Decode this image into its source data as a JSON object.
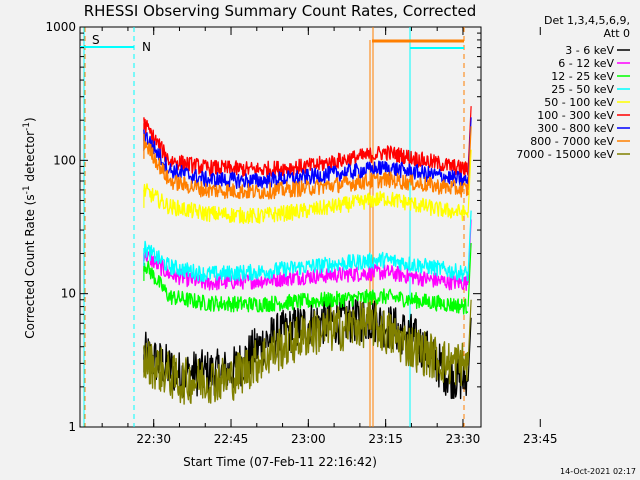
{
  "chart_data": {
    "type": "line",
    "title": "RHESSI Observing Summary Count Rates, Corrected",
    "xlabel": "Start Time (07-Feb-11 22:16:42)",
    "ylabel_main": "Corrected Count Rate (s",
    "ylabel_sup1": "-1",
    "ylabel_mid": " detector",
    "ylabel_sup2": "-1",
    "ylabel_end": ")",
    "yscale": "log",
    "ylim": [
      1,
      1000
    ],
    "y_ticks": [
      {
        "value": 1,
        "label": "1"
      },
      {
        "value": 10,
        "label": "10"
      },
      {
        "value": 100,
        "label": "100"
      },
      {
        "value": 1000,
        "label": "1000"
      }
    ],
    "xlim_minutes": [
      -14.3,
      63.5
    ],
    "x_ticks": [
      {
        "minute": 0,
        "label": "22:30"
      },
      {
        "minute": 15,
        "label": "22:45"
      },
      {
        "minute": 30,
        "label": "23:00"
      },
      {
        "minute": 45,
        "label": "23:15"
      },
      {
        "minute": 60,
        "label": "23:30"
      },
      {
        "minute": 75,
        "label": "23:45"
      }
    ],
    "legend_header": [
      "Det 1,3,4,5,6,9,",
      "Att 0"
    ],
    "legend_position": "right",
    "series": [
      {
        "name": "3 - 6 keV",
        "color": "#000000",
        "segments": [
          [
            -1.9,
            3.5
          ],
          [
            5,
            2.5
          ],
          [
            15,
            2.6
          ],
          [
            22,
            4.5
          ],
          [
            30,
            6
          ],
          [
            42,
            6.5
          ],
          [
            50,
            4.8
          ],
          [
            57,
            2.5
          ],
          [
            61,
            2.2
          ]
        ]
      },
      {
        "name": "6 - 12 keV",
        "color": "#ff00ff",
        "segments": [
          [
            -1.9,
            20
          ],
          [
            3,
            14
          ],
          [
            10,
            12
          ],
          [
            20,
            12.5
          ],
          [
            30,
            13.5
          ],
          [
            45,
            14.5
          ],
          [
            55,
            12.5
          ],
          [
            61,
            12
          ]
        ]
      },
      {
        "name": "12 - 25 keV",
        "color": "#00ff00",
        "segments": [
          [
            -1.9,
            17
          ],
          [
            3,
            9.5
          ],
          [
            10,
            8.5
          ],
          [
            20,
            8.3
          ],
          [
            30,
            8.8
          ],
          [
            45,
            9.5
          ],
          [
            55,
            8.5
          ],
          [
            61,
            8
          ]
        ]
      },
      {
        "name": "25 - 50 keV",
        "color": "#00ffff",
        "segments": [
          [
            -1.9,
            22
          ],
          [
            3,
            16
          ],
          [
            10,
            14
          ],
          [
            20,
            14.5
          ],
          [
            30,
            16
          ],
          [
            45,
            18
          ],
          [
            55,
            15.5
          ],
          [
            61,
            14
          ]
        ]
      },
      {
        "name": "50 - 100 keV",
        "color": "#ffff00",
        "segments": [
          [
            -1.9,
            60
          ],
          [
            3,
            45
          ],
          [
            10,
            40
          ],
          [
            20,
            38
          ],
          [
            30,
            42
          ],
          [
            45,
            52
          ],
          [
            55,
            43
          ],
          [
            61,
            40
          ]
        ]
      },
      {
        "name": "100 - 300 keV",
        "color": "#ff0000",
        "segments": [
          [
            -1.9,
            190
          ],
          [
            3,
            100
          ],
          [
            10,
            88
          ],
          [
            20,
            85
          ],
          [
            30,
            90
          ],
          [
            45,
            115
          ],
          [
            55,
            95
          ],
          [
            61,
            85
          ]
        ]
      },
      {
        "name": "300 - 800 keV",
        "color": "#0000ff",
        "segments": [
          [
            -1.9,
            160
          ],
          [
            3,
            85
          ],
          [
            10,
            72
          ],
          [
            20,
            70
          ],
          [
            30,
            75
          ],
          [
            45,
            88
          ],
          [
            55,
            77
          ],
          [
            61,
            70
          ]
        ]
      },
      {
        "name": "800 - 7000 keV",
        "color": "#ff7f00",
        "segments": [
          [
            -1.9,
            140
          ],
          [
            3,
            70
          ],
          [
            10,
            60
          ],
          [
            20,
            58
          ],
          [
            30,
            62
          ],
          [
            45,
            72
          ],
          [
            55,
            64
          ],
          [
            61,
            60
          ]
        ]
      },
      {
        "name": "7000 - 15000 keV",
        "color": "#808000",
        "segments": [
          [
            -1.9,
            3.2
          ],
          [
            5,
            2.2
          ],
          [
            15,
            2.3
          ],
          [
            22,
            3.5
          ],
          [
            30,
            5
          ],
          [
            42,
            6
          ],
          [
            50,
            4
          ],
          [
            57,
            3
          ],
          [
            61,
            3
          ]
        ]
      }
    ],
    "annotations": [
      {
        "text": "S",
        "color": "#ff7f00"
      },
      {
        "text": "N",
        "color": "#00ffff"
      }
    ],
    "footer": "14-Oct-2021 02:17"
  }
}
